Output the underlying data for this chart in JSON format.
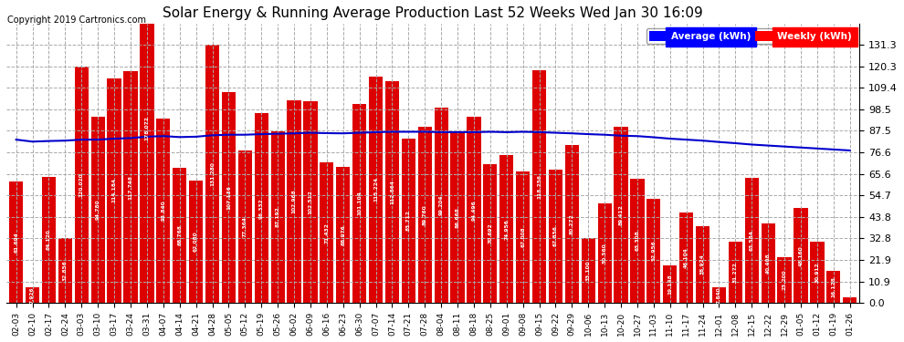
{
  "title": "Solar Energy & Running Average Production Last 52 Weeks Wed Jan 30 16:09",
  "copyright": "Copyright 2019 Cartronics.com",
  "legend_avg": "Average (kWh)",
  "legend_weekly": "Weekly (kWh)",
  "bar_color": "#dd0000",
  "avg_line_color": "#0000cc",
  "background_color": "#ffffff",
  "plot_bg_color": "#ffffff",
  "grid_color": "#aaaaaa",
  "ylim": [
    0,
    142
  ],
  "yticks": [
    0.0,
    10.9,
    21.9,
    32.8,
    43.8,
    54.7,
    65.6,
    76.6,
    87.5,
    98.5,
    109.4,
    120.3,
    131.3
  ],
  "categories": [
    "02-03",
    "02-10",
    "02-17",
    "02-24",
    "03-03",
    "03-10",
    "03-17",
    "03-24",
    "03-31",
    "04-07",
    "04-14",
    "04-21",
    "04-28",
    "05-05",
    "05-12",
    "05-19",
    "05-26",
    "06-02",
    "06-09",
    "06-16",
    "06-23",
    "06-30",
    "07-07",
    "07-14",
    "07-21",
    "07-28",
    "08-04",
    "08-11",
    "08-18",
    "08-25",
    "09-01",
    "09-08",
    "09-15",
    "09-22",
    "09-29",
    "10-06",
    "10-13",
    "10-20",
    "10-27",
    "11-03",
    "11-10",
    "11-17",
    "11-24",
    "12-01",
    "12-08",
    "12-15",
    "12-22",
    "12-29",
    "01-05",
    "01-12",
    "01-19",
    "01-26"
  ],
  "weekly_values": [
    61.694,
    7.926,
    64.12,
    32.856,
    120.02,
    94.78,
    114.184,
    117.748,
    178.072,
    93.84,
    68.768,
    62.08,
    131.28,
    107.136,
    77.364,
    96.332,
    87.192,
    102.968,
    102.512,
    71.432,
    68.976,
    101.104,
    115.224,
    112.864,
    83.712,
    89.76,
    99.204,
    86.668,
    94.496,
    70.692,
    74.956,
    67.008,
    118.256,
    67.856,
    80.272,
    33.1,
    50.56,
    89.412,
    63.308,
    52.956,
    19.148,
    46.104,
    38.924,
    7.84,
    31.272,
    63.584,
    40.408,
    23.2,
    48.16,
    30.912,
    16.128,
    3.012
  ],
  "avg_values": [
    83.0,
    82.0,
    82.3,
    82.5,
    83.0,
    83.0,
    83.5,
    83.8,
    84.5,
    84.8,
    84.3,
    84.5,
    85.2,
    85.5,
    85.5,
    85.8,
    86.0,
    86.2,
    86.5,
    86.3,
    86.2,
    86.5,
    86.8,
    87.0,
    87.0,
    87.0,
    86.8,
    86.8,
    86.8,
    87.0,
    86.8,
    87.0,
    86.8,
    86.5,
    86.2,
    85.8,
    85.5,
    85.0,
    84.8,
    84.2,
    83.5,
    83.0,
    82.5,
    81.8,
    81.2,
    80.5,
    80.0,
    79.5,
    79.0,
    78.5,
    78.0,
    77.5
  ]
}
